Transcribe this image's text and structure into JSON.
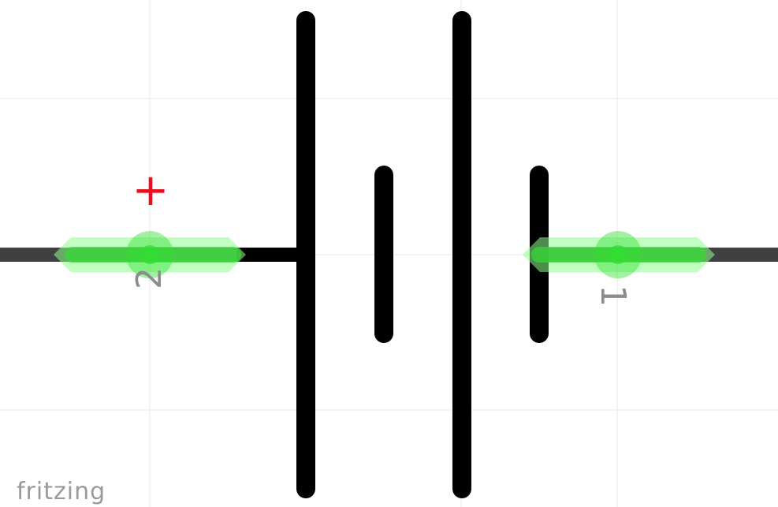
{
  "diagram": {
    "component": "battery",
    "positive_marker": "+",
    "pins": [
      {
        "label": "2"
      },
      {
        "label": "1"
      }
    ],
    "watermark": "fritzing",
    "colors": {
      "background": "#ffffff",
      "grid": "#efefef",
      "plate": "#000000",
      "lead": "#404040",
      "connector_highlight": "#33dd33",
      "connector_glow": "#8cff8c",
      "pin_label": "#8c8c8c",
      "positive_marker": "#e8101e",
      "watermark": "#9a9a9a"
    }
  }
}
